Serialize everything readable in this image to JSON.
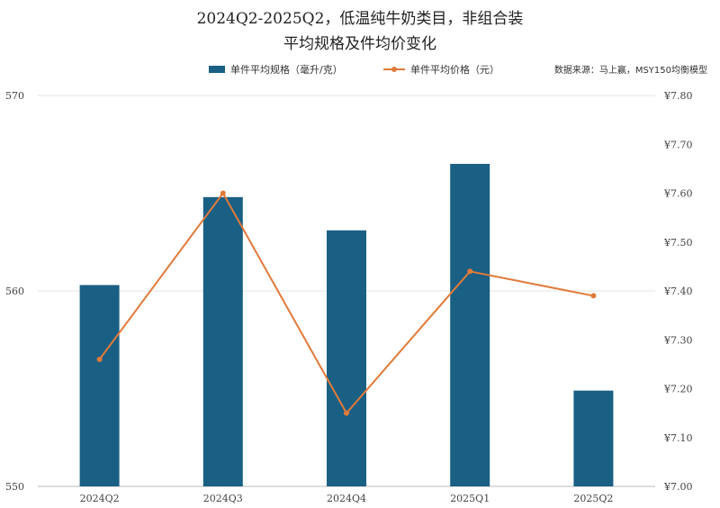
{
  "title_line1": "2024Q2-2025Q2，低温纯牛奶类目，非组合装",
  "title_line2": "平均规格及件均价变化",
  "source": "数据来源：马上赢，MSY150均衡模型",
  "colors": {
    "bar": "#1a5f84",
    "line": "#e07a3a",
    "grid": "#e6e6e6"
  },
  "chart_data": {
    "type": "bar",
    "categories": [
      "2024Q2",
      "2024Q3",
      "2024Q4",
      "2025Q1",
      "2025Q2"
    ],
    "series": [
      {
        "name": "单件平均规格（毫升/克）",
        "type": "bar",
        "axis": "left",
        "values": [
          560.3,
          564.8,
          563.1,
          566.5,
          554.9
        ]
      },
      {
        "name": "单件平均价格（元）",
        "type": "line",
        "axis": "right",
        "values": [
          7.26,
          7.6,
          7.15,
          7.44,
          7.39
        ]
      }
    ],
    "left_axis": {
      "ylim": [
        550,
        570
      ],
      "ticks": [
        "550",
        "560",
        "570"
      ],
      "tick_values": [
        550,
        560,
        570
      ]
    },
    "right_axis": {
      "ylim": [
        7.0,
        7.8
      ],
      "ticks": [
        "¥7.00",
        "¥7.10",
        "¥7.20",
        "¥7.30",
        "¥7.40",
        "¥7.50",
        "¥7.60",
        "¥7.70",
        "¥7.80"
      ],
      "tick_values": [
        7.0,
        7.1,
        7.2,
        7.3,
        7.4,
        7.5,
        7.6,
        7.7,
        7.8
      ]
    },
    "grid": true,
    "legend_position": "top"
  }
}
